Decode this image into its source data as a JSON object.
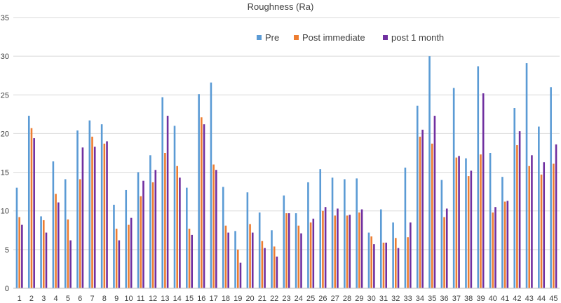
{
  "chart_data": {
    "type": "bar",
    "title": "Roughness (Ra)",
    "xlabel": "",
    "ylabel": "",
    "ylim": [
      0,
      35
    ],
    "yticks": [
      0,
      5,
      10,
      15,
      20,
      25,
      30,
      35
    ],
    "grid": true,
    "legend_position": "top-right",
    "categories": [
      "1",
      "2",
      "3",
      "4",
      "5",
      "6",
      "7",
      "8",
      "9",
      "10",
      "11",
      "12",
      "13",
      "14",
      "15",
      "16",
      "17",
      "18",
      "19",
      "20",
      "21",
      "22",
      "23",
      "24",
      "25",
      "26",
      "27",
      "28",
      "29",
      "30",
      "31",
      "32",
      "33",
      "34",
      "35",
      "36",
      "37",
      "38",
      "39",
      "40",
      "41",
      "42",
      "43",
      "44",
      "45"
    ],
    "series": [
      {
        "name": "Pre",
        "color": "#5B9BD5",
        "values": [
          13.0,
          22.3,
          9.3,
          16.4,
          14.1,
          20.4,
          21.7,
          21.2,
          10.8,
          12.7,
          15.0,
          17.2,
          24.7,
          21.0,
          13.0,
          25.1,
          26.6,
          13.1,
          7.4,
          12.4,
          9.8,
          7.5,
          12.0,
          9.7,
          13.7,
          15.4,
          14.3,
          14.1,
          14.2,
          7.2,
          10.2,
          8.5,
          15.6,
          23.6,
          30.0,
          14.0,
          25.9,
          16.8,
          28.7,
          17.5,
          14.4,
          23.3,
          29.1,
          20.9,
          26.0
        ]
      },
      {
        "name": "Post immediate",
        "color": "#ED7D31",
        "values": [
          9.2,
          20.7,
          8.8,
          12.2,
          8.9,
          14.1,
          19.6,
          18.7,
          7.7,
          8.2,
          11.9,
          13.7,
          17.5,
          15.8,
          7.7,
          22.1,
          16.0,
          8.1,
          5.0,
          8.3,
          6.1,
          5.4,
          9.7,
          8.1,
          8.5,
          10.0,
          9.4,
          9.4,
          9.8,
          6.7,
          5.9,
          6.5,
          6.6,
          19.6,
          18.7,
          9.2,
          16.9,
          14.5,
          17.3,
          9.8,
          11.2,
          18.5,
          15.8,
          14.7,
          16.1
        ]
      },
      {
        "name": "post 1 month",
        "color": "#7030A0",
        "values": [
          8.2,
          19.4,
          7.2,
          11.1,
          6.2,
          18.2,
          18.3,
          19.0,
          6.2,
          9.1,
          13.9,
          15.3,
          22.3,
          14.3,
          6.9,
          21.2,
          15.3,
          7.2,
          3.3,
          7.2,
          5.2,
          4.1,
          9.7,
          7.1,
          9.0,
          10.5,
          10.3,
          9.5,
          10.2,
          5.7,
          5.9,
          5.2,
          8.5,
          20.5,
          22.3,
          10.3,
          17.1,
          15.2,
          25.2,
          10.5,
          11.3,
          20.3,
          17.2,
          16.3,
          18.6
        ]
      }
    ]
  }
}
